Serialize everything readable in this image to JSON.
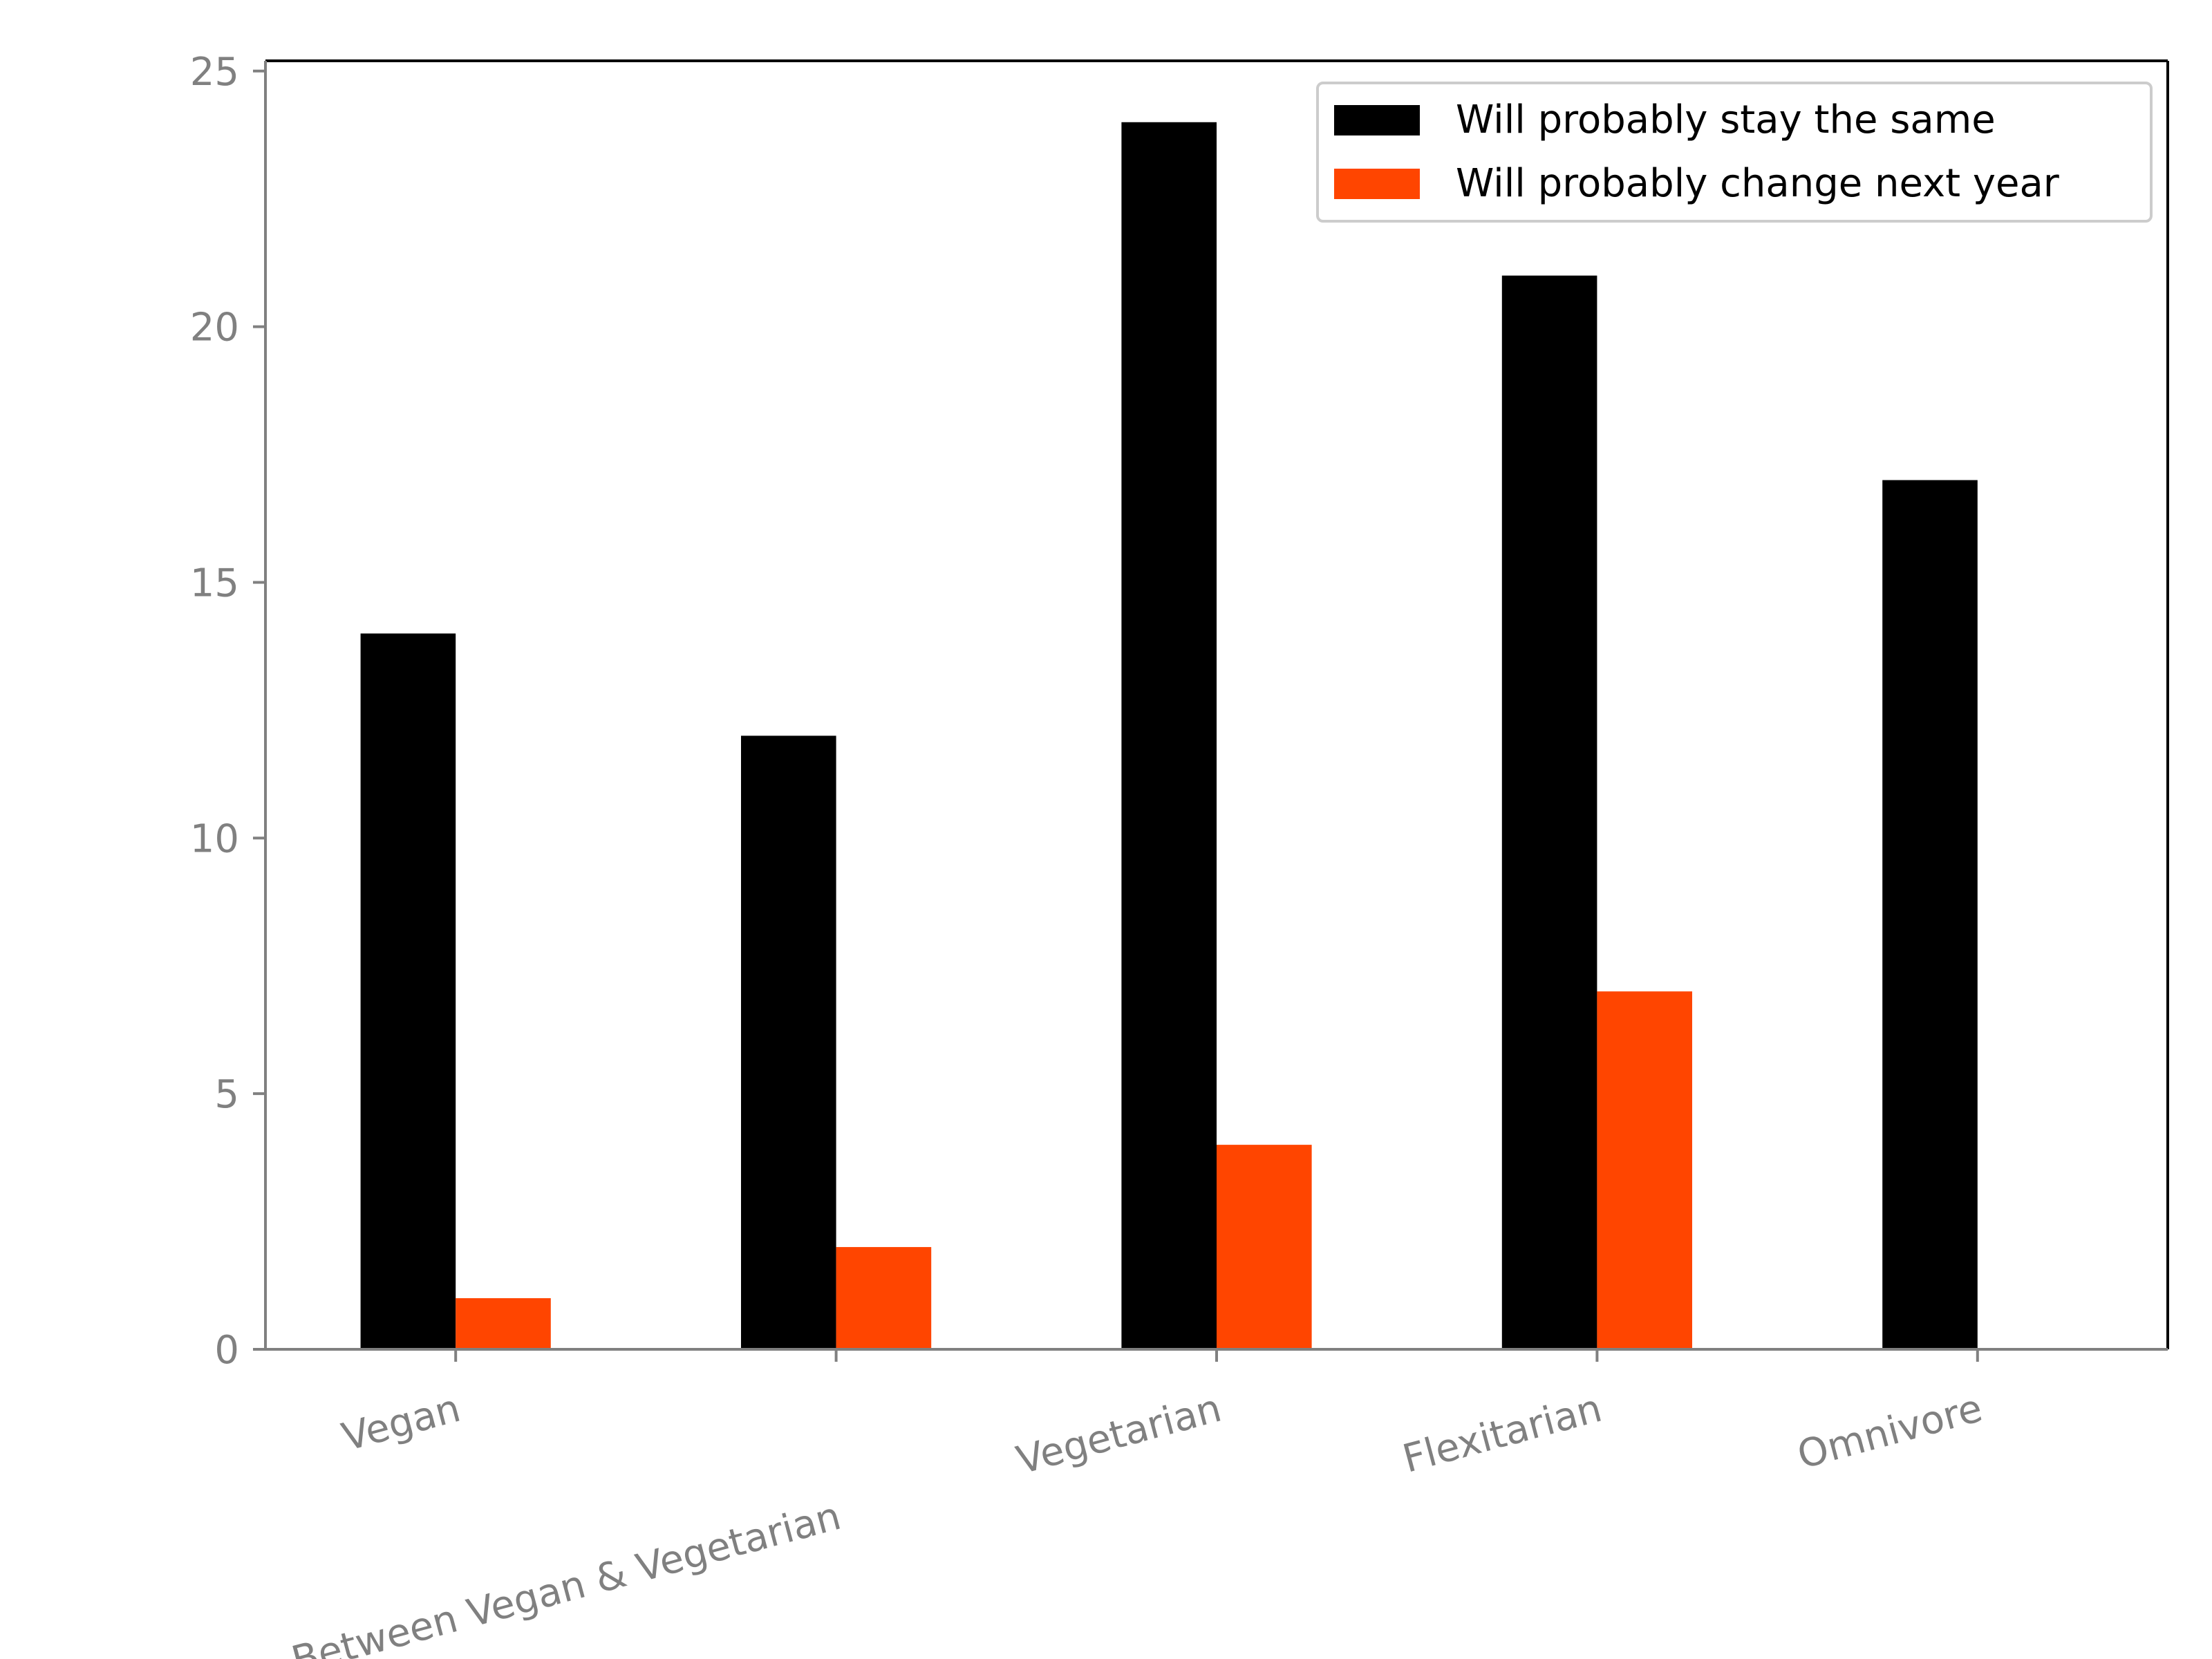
{
  "chart_data": {
    "type": "bar",
    "categories": [
      "Vegan",
      "Between Vegan & Vegetarian",
      "Vegetarian",
      "Flexitarian",
      "Omnivore"
    ],
    "series": [
      {
        "name": "Will probably stay the same",
        "values": [
          14,
          12,
          24,
          21,
          17
        ],
        "color": "#000000"
      },
      {
        "name": "Will probably change next year",
        "values": [
          1,
          2,
          4,
          7,
          0
        ],
        "color": "#ff4500"
      }
    ],
    "ylim": [
      0,
      25.2
    ],
    "yticks": [
      0,
      5,
      10,
      15,
      20,
      25
    ],
    "xlabel": "",
    "ylabel": "",
    "title": "",
    "grid": false,
    "legend_position": "upper right",
    "axis_color": "#808080",
    "tick_label_color": "#808080"
  }
}
